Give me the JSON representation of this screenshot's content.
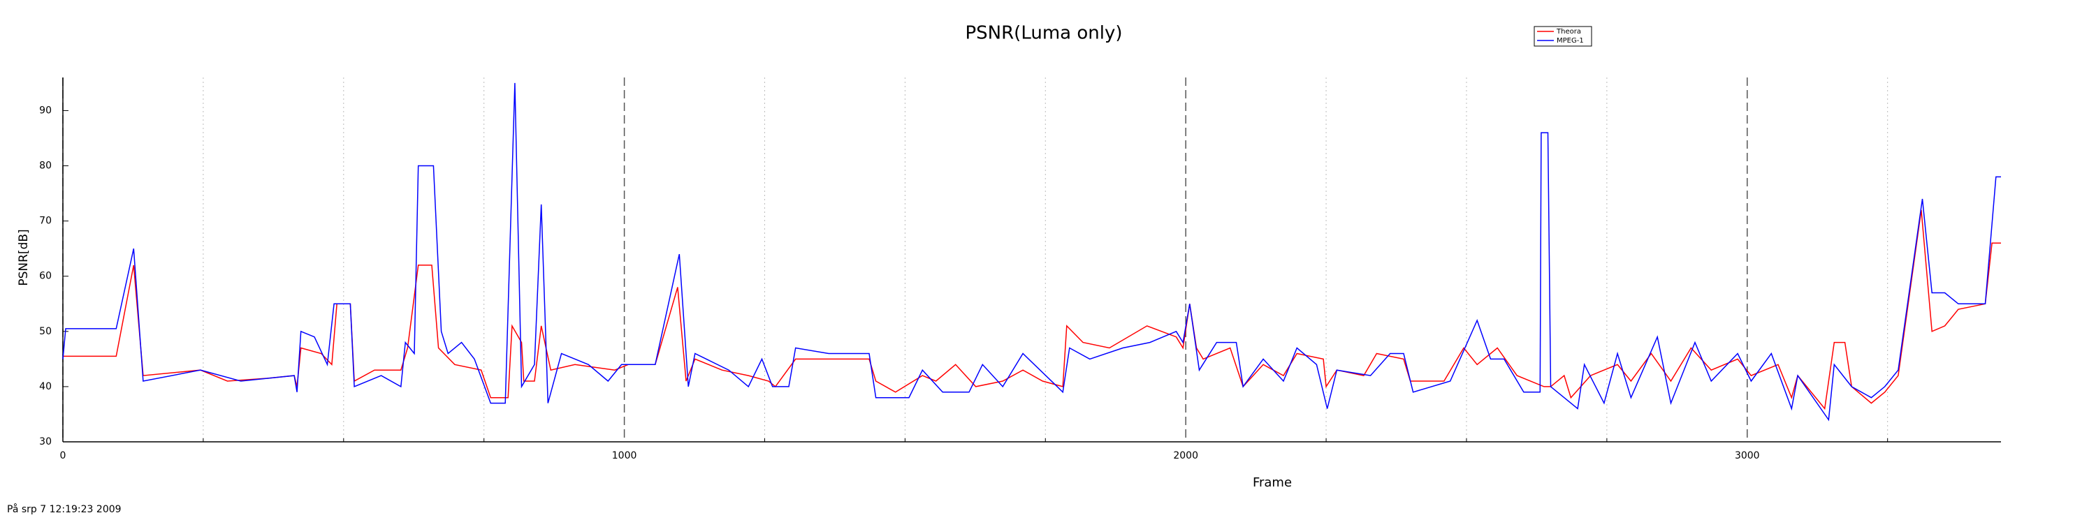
{
  "chart_data": {
    "type": "line",
    "title": "PSNR(Luma only)",
    "x_label": "Frame",
    "y_label": "PSNR[dB]",
    "footer": "På srp 7 12:19:23 2009",
    "xlim": [
      0,
      3452
    ],
    "ylim": [
      30,
      96
    ],
    "xticks": [
      0,
      1000,
      2000,
      3000
    ],
    "yticks": [
      30,
      40,
      50,
      60,
      70,
      80,
      90
    ],
    "x_minor_grid": [
      250,
      500,
      750,
      1250,
      1500,
      1750,
      2250,
      2500,
      2750,
      3250
    ],
    "legend": "top",
    "series": [
      {
        "name": "Theora",
        "color": "#ff0000",
        "x": [
          0,
          95,
          126,
          143,
          245,
          293,
          364,
          412,
          417,
          424,
          460,
          479,
          488,
          512,
          519,
          555,
          602,
          614,
          633,
          657,
          669,
          698,
          745,
          762,
          793,
          800,
          817,
          821,
          840,
          852,
          869,
          912,
          983,
          1007,
          1055,
          1095,
          1110,
          1126,
          1174,
          1221,
          1257,
          1269,
          1305,
          1364,
          1436,
          1448,
          1483,
          1531,
          1555,
          1590,
          1626,
          1674,
          1710,
          1745,
          1781,
          1788,
          1817,
          1864,
          1931,
          1983,
          1995,
          2007,
          2019,
          2031,
          2079,
          2102,
          2138,
          2174,
          2198,
          2245,
          2250,
          2269,
          2317,
          2340,
          2388,
          2400,
          2460,
          2495,
          2519,
          2555,
          2590,
          2638,
          2650,
          2674,
          2686,
          2721,
          2769,
          2793,
          2829,
          2864,
          2900,
          2936,
          2983,
          3007,
          3055,
          3079,
          3090,
          3138,
          3155,
          3174,
          3186,
          3221,
          3245,
          3269,
          3310,
          3329,
          3352,
          3376,
          3424,
          3436,
          3452
        ],
        "values": [
          45.5,
          45.5,
          62,
          42,
          43,
          41,
          41.5,
          42,
          40,
          47,
          46,
          44,
          55,
          55,
          41,
          43,
          43,
          47,
          62,
          62,
          47,
          44,
          43,
          38,
          38,
          51,
          48,
          41,
          41,
          51,
          43,
          44,
          43,
          44,
          44,
          58,
          41,
          45,
          43,
          42,
          41,
          40,
          45,
          45,
          45,
          41,
          39,
          42,
          41,
          44,
          40,
          41,
          43,
          41,
          40,
          51,
          48,
          47,
          51,
          49,
          47,
          55,
          47,
          45,
          47,
          40,
          44,
          42,
          46,
          45,
          40,
          43,
          42,
          46,
          45,
          41,
          41,
          47,
          44,
          47,
          42,
          40,
          40,
          42,
          38,
          42,
          44,
          41,
          46,
          41,
          47,
          43,
          45,
          42,
          44,
          38,
          42,
          36,
          48,
          48,
          40,
          37,
          39,
          42,
          72,
          50,
          51,
          54,
          55,
          66,
          66
        ]
      },
      {
        "name": "MPEG-1",
        "color": "#0000ff",
        "x": [
          0,
          5,
          95,
          126,
          143,
          245,
          317,
          412,
          417,
          424,
          448,
          471,
          483,
          512,
          519,
          567,
          602,
          610,
          626,
          633,
          660,
          674,
          686,
          710,
          733,
          762,
          788,
          805,
          817,
          840,
          852,
          864,
          888,
          936,
          971,
          995,
          1055,
          1098,
          1114,
          1126,
          1186,
          1221,
          1245,
          1264,
          1293,
          1305,
          1364,
          1436,
          1448,
          1507,
          1531,
          1567,
          1614,
          1638,
          1674,
          1710,
          1771,
          1781,
          1793,
          1829,
          1888,
          1936,
          1983,
          1995,
          2007,
          2024,
          2055,
          2090,
          2102,
          2138,
          2174,
          2198,
          2233,
          2252,
          2269,
          2329,
          2364,
          2388,
          2405,
          2471,
          2519,
          2543,
          2567,
          2602,
          2631,
          2633,
          2645,
          2650,
          2674,
          2698,
          2710,
          2745,
          2769,
          2793,
          2840,
          2864,
          2907,
          2936,
          2983,
          3007,
          3043,
          3079,
          3090,
          3145,
          3155,
          3186,
          3221,
          3245,
          3269,
          3312,
          3329,
          3352,
          3376,
          3424,
          3443,
          3452
        ],
        "values": [
          45,
          50.5,
          50.5,
          65,
          41,
          43,
          41,
          42,
          39,
          50,
          49,
          44,
          55,
          55,
          40,
          42,
          40,
          48,
          46,
          80,
          80,
          50,
          46,
          48,
          45,
          37,
          37,
          95,
          40,
          44,
          73,
          37,
          46,
          44,
          41,
          44,
          44,
          64,
          40,
          46,
          43,
          40,
          45,
          40,
          40,
          47,
          46,
          46,
          38,
          38,
          43,
          39,
          39,
          44,
          40,
          46,
          40,
          39,
          47,
          45,
          47,
          48,
          50,
          48,
          55,
          43,
          48,
          48,
          40,
          45,
          41,
          47,
          44,
          36,
          43,
          42,
          46,
          46,
          39,
          41,
          52,
          45,
          45,
          39,
          39,
          86,
          86,
          40,
          38,
          36,
          44,
          37,
          46,
          38,
          49,
          37,
          48,
          41,
          46,
          41,
          46,
          36,
          42,
          34,
          44,
          40,
          38,
          40,
          43,
          74,
          57,
          57,
          55,
          55,
          78,
          78
        ]
      }
    ]
  }
}
